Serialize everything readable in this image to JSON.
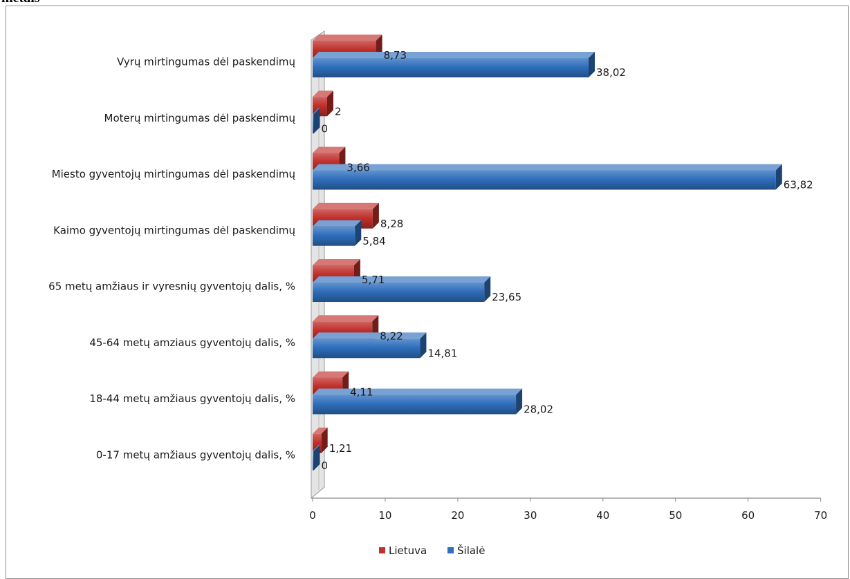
{
  "page": {
    "heading": "metais"
  },
  "colors": {
    "lietuva": "#c0302c",
    "silale": "#2f6fbd"
  },
  "chart_data": {
    "type": "bar",
    "orientation": "horizontal",
    "style": "3d",
    "categories": [
      "Vyrų mirtingumas dėl paskendimų",
      "Moterų mirtingumas dėl paskendimų",
      "Miesto gyventojų mirtingumas dėl paskendimų",
      "Kaimo gyventojų mirtingumas dėl paskendimų",
      "65 metų amžiaus ir vyresnių gyventojų dalis, %",
      "45-64 metų amziaus gyventojų dalis, %",
      "18-44 metų amžiaus gyventojų dalis, %",
      "0-17 metų amžiaus gyventojų dalis, %"
    ],
    "series": [
      {
        "name": "Lietuva",
        "values": [
          8.73,
          2,
          3.66,
          8.28,
          5.71,
          8.22,
          4.11,
          1.21
        ],
        "labels": [
          "8,73",
          "2",
          "3,66",
          "8,28",
          "5,71",
          "8,22",
          "4,11",
          "1,21"
        ]
      },
      {
        "name": "Šilalė",
        "values": [
          38.02,
          0,
          63.82,
          5.84,
          23.65,
          14.81,
          28.02,
          0
        ],
        "labels": [
          "38,02",
          "0",
          "63,82",
          "5,84",
          "23,65",
          "14,81",
          "28,02",
          "0"
        ]
      }
    ],
    "xlim": [
      0,
      70
    ],
    "xticks": [
      "0",
      "10",
      "20",
      "30",
      "40",
      "50",
      "60",
      "70"
    ],
    "grid": false,
    "legend_position": "bottom"
  }
}
